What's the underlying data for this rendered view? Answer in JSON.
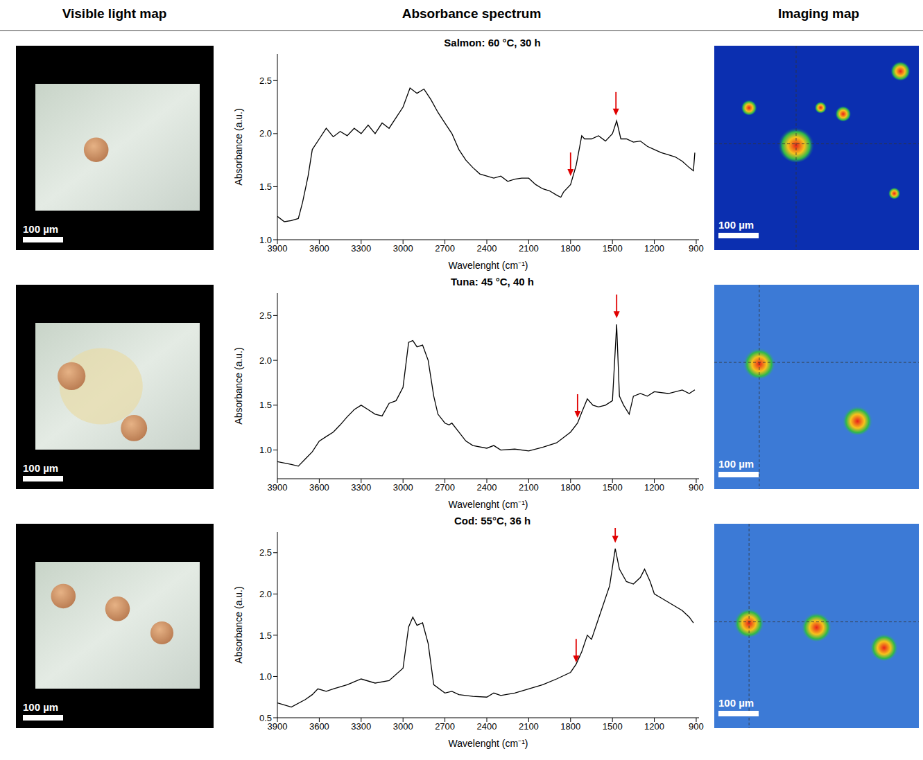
{
  "column_titles": [
    "Visible light map",
    "Absorbance spectrum",
    "Imaging map"
  ],
  "scale_bar_label": "100 µm",
  "chart_data": [
    {
      "type": "line",
      "title": "Salmon: 60 °C, 30 h",
      "x_label": "Wavelenght (cm⁻¹)",
      "y_label": "Absorbance (a.u.)",
      "color": "#000000",
      "x": [
        3900,
        3850,
        3800,
        3750,
        3720,
        3680,
        3650,
        3600,
        3550,
        3500,
        3450,
        3400,
        3350,
        3300,
        3250,
        3200,
        3150,
        3100,
        3050,
        3000,
        2950,
        2900,
        2850,
        2800,
        2750,
        2700,
        2650,
        2600,
        2550,
        2500,
        2450,
        2400,
        2350,
        2300,
        2250,
        2200,
        2150,
        2100,
        2050,
        2000,
        1950,
        1900,
        1870,
        1850,
        1800,
        1760,
        1720,
        1700,
        1650,
        1600,
        1550,
        1500,
        1470,
        1440,
        1400,
        1350,
        1300,
        1250,
        1200,
        1150,
        1100,
        1050,
        1000,
        950,
        920,
        910
      ],
      "values": [
        1.22,
        1.17,
        1.18,
        1.2,
        1.35,
        1.6,
        1.85,
        1.95,
        2.05,
        1.97,
        2.02,
        1.98,
        2.05,
        2.0,
        2.08,
        2.0,
        2.1,
        2.05,
        2.15,
        2.25,
        2.43,
        2.38,
        2.42,
        2.32,
        2.2,
        2.1,
        2.0,
        1.85,
        1.75,
        1.68,
        1.62,
        1.6,
        1.58,
        1.6,
        1.55,
        1.57,
        1.58,
        1.58,
        1.52,
        1.48,
        1.46,
        1.42,
        1.4,
        1.45,
        1.52,
        1.7,
        1.98,
        1.95,
        1.95,
        1.98,
        1.93,
        2.0,
        2.12,
        1.95,
        1.95,
        1.92,
        1.93,
        1.88,
        1.85,
        1.82,
        1.8,
        1.78,
        1.74,
        1.68,
        1.65,
        1.82
      ],
      "xlim": [
        3900,
        880
      ],
      "xticks": [
        3900,
        3600,
        3300,
        3000,
        2700,
        2400,
        2100,
        1800,
        1500,
        1200,
        900
      ],
      "ylim": [
        1.0,
        2.75
      ],
      "yticks": [
        {
          "value": 1.0,
          "label": "1.0"
        },
        1.5,
        {
          "value": 2.0,
          "label": "2.0"
        },
        2.5
      ],
      "arrows": [
        {
          "x": 1800,
          "y": 1.6,
          "color": "#e00000"
        },
        {
          "x": 1475,
          "y": 2.17,
          "color": "#e00000"
        }
      ]
    },
    {
      "type": "line",
      "title": "Tuna: 45 °C, 40 h",
      "x_label": "Wavelenght (cm⁻¹)",
      "y_label": "Absorbance (a.u.)",
      "color": "#000000",
      "x": [
        3900,
        3800,
        3750,
        3700,
        3650,
        3600,
        3550,
        3500,
        3450,
        3400,
        3350,
        3300,
        3250,
        3200,
        3150,
        3100,
        3050,
        3000,
        2960,
        2930,
        2900,
        2860,
        2820,
        2780,
        2750,
        2700,
        2670,
        2650,
        2600,
        2550,
        2500,
        2400,
        2350,
        2300,
        2200,
        2100,
        2000,
        1900,
        1800,
        1750,
        1720,
        1680,
        1640,
        1600,
        1550,
        1500,
        1470,
        1450,
        1420,
        1380,
        1350,
        1300,
        1250,
        1200,
        1100,
        1000,
        950,
        910
      ],
      "values": [
        0.87,
        0.84,
        0.82,
        0.9,
        0.98,
        1.1,
        1.15,
        1.2,
        1.28,
        1.37,
        1.45,
        1.5,
        1.45,
        1.4,
        1.38,
        1.52,
        1.55,
        1.7,
        2.2,
        2.22,
        2.15,
        2.17,
        2.0,
        1.6,
        1.4,
        1.3,
        1.28,
        1.3,
        1.2,
        1.1,
        1.05,
        1.02,
        1.05,
        1.0,
        1.01,
        0.99,
        1.03,
        1.08,
        1.2,
        1.3,
        1.42,
        1.57,
        1.5,
        1.48,
        1.5,
        1.55,
        2.4,
        1.6,
        1.5,
        1.4,
        1.6,
        1.63,
        1.6,
        1.65,
        1.63,
        1.67,
        1.63,
        1.67
      ],
      "xlim": [
        3900,
        880
      ],
      "xticks": [
        3900,
        3600,
        3300,
        3000,
        2700,
        2400,
        2100,
        1800,
        1500,
        1200,
        900
      ],
      "ylim": [
        0.68,
        2.75
      ],
      "yticks": [
        {
          "value": 1.0,
          "label": "1.0"
        },
        1.5,
        {
          "value": 2.0,
          "label": "2.0"
        },
        2.5
      ],
      "arrows": [
        {
          "x": 1750,
          "y": 1.36,
          "color": "#e00000"
        },
        {
          "x": 1470,
          "y": 2.47,
          "color": "#e00000"
        }
      ]
    },
    {
      "type": "line",
      "title": "Cod: 55°C, 36 h",
      "x_label": "Wavelenght (cm⁻¹)",
      "y_label": "Absorbance (a.u.)",
      "color": "#000000",
      "x": [
        3900,
        3800,
        3700,
        3650,
        3610,
        3550,
        3500,
        3400,
        3300,
        3200,
        3100,
        3000,
        2960,
        2930,
        2900,
        2860,
        2820,
        2780,
        2700,
        2650,
        2600,
        2500,
        2400,
        2350,
        2300,
        2200,
        2100,
        2000,
        1900,
        1800,
        1760,
        1720,
        1680,
        1650,
        1600,
        1520,
        1480,
        1450,
        1400,
        1350,
        1300,
        1270,
        1230,
        1200,
        1150,
        1100,
        1050,
        1000,
        950,
        920
      ],
      "values": [
        0.68,
        0.63,
        0.72,
        0.78,
        0.85,
        0.82,
        0.85,
        0.9,
        0.97,
        0.92,
        0.95,
        1.1,
        1.6,
        1.72,
        1.62,
        1.65,
        1.4,
        0.9,
        0.8,
        0.82,
        0.78,
        0.76,
        0.75,
        0.8,
        0.77,
        0.8,
        0.85,
        0.9,
        0.97,
        1.05,
        1.15,
        1.3,
        1.5,
        1.45,
        1.7,
        2.1,
        2.55,
        2.3,
        2.15,
        2.12,
        2.2,
        2.3,
        2.15,
        2.0,
        1.95,
        1.9,
        1.85,
        1.8,
        1.72,
        1.65
      ],
      "xlim": [
        3900,
        880
      ],
      "xticks": [
        3900,
        3600,
        3300,
        3000,
        2700,
        2400,
        2100,
        1800,
        1500,
        1200,
        900
      ],
      "ylim": [
        0.5,
        2.75
      ],
      "yticks": [
        0.5,
        {
          "value": 1.0,
          "label": "1.0"
        },
        1.5,
        {
          "value": 2.0,
          "label": "2.0"
        },
        2.5
      ],
      "arrows": [
        {
          "x": 1760,
          "y": 1.17,
          "color": "#e00000"
        },
        {
          "x": 1480,
          "y": 2.62,
          "color": "#e00000"
        }
      ]
    }
  ]
}
